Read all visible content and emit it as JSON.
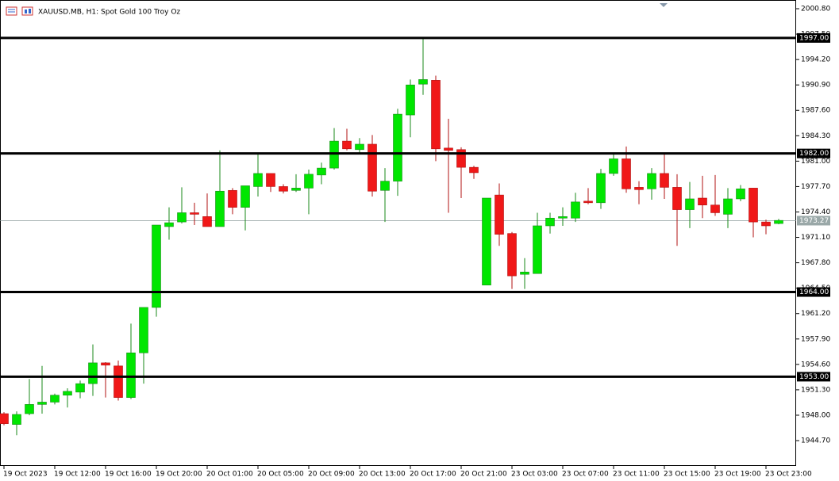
{
  "chart_data": {
    "type": "candlestick",
    "title": "XAUUSD.MB, H1:  Spot Gold 100 Troy Oz",
    "up_color": "#00e600",
    "down_color": "#f01818",
    "categories": [
      "19 Oct 2023",
      null,
      null,
      null,
      "19 Oct 12:00",
      null,
      null,
      null,
      "19 Oct 16:00",
      null,
      null,
      null,
      "19 Oct 20:00",
      null,
      null,
      null,
      "20 Oct 01:00",
      null,
      null,
      null,
      "20 Oct 05:00",
      null,
      null,
      null,
      "20 Oct 09:00",
      null,
      null,
      null,
      "20 Oct 13:00",
      null,
      null,
      null,
      "20 Oct 17:00",
      null,
      null,
      null,
      "20 Oct 21:00",
      null,
      null,
      null,
      "23 Oct 03:00",
      null,
      null,
      null,
      "23 Oct 07:00",
      null,
      null,
      null,
      "23 Oct 11:00",
      null,
      null,
      null,
      "23 Oct 15:00",
      null,
      null,
      null,
      "23 Oct 19:00",
      null,
      null,
      null,
      "23 Oct 23:00",
      null
    ],
    "open": [
      1948.2,
      1946.8,
      1948.2,
      1949.4,
      1949.7,
      1950.6,
      1951.0,
      1952.1,
      1954.8,
      1954.4,
      1950.3,
      1956.1,
      1962.0,
      1972.5,
      1973.1,
      1974.3,
      1973.8,
      1972.5,
      1977.2,
      1975.0,
      1977.7,
      1979.4,
      1977.7,
      1977.2,
      1977.5,
      1979.2,
      1980.1,
      1983.6,
      1982.5,
      1983.2,
      1977.2,
      1978.4,
      1987.0,
      1991.0,
      1991.5,
      1982.7,
      1982.5,
      1980.2,
      1964.9,
      1976.6,
      1971.6,
      1966.3,
      1966.4,
      1972.6,
      1973.6,
      1973.6,
      1975.8,
      1975.6,
      1979.4,
      1981.3,
      1977.6,
      1977.4,
      1979.4,
      1977.6,
      1974.7,
      1976.2,
      1975.3,
      1974.1,
      1976.1,
      1977.5,
      1973.1,
      1972.9
    ],
    "high": [
      1948.4,
      1948.5,
      1952.7,
      1954.4,
      1950.8,
      1951.5,
      1952.5,
      1957.2,
      1954.9,
      1955.1,
      1959.9,
      1962.0,
      1972.7,
      1975.0,
      1977.6,
      1975.6,
      1976.8,
      1982.4,
      1977.5,
      1977.8,
      1982.0,
      1979.4,
      1978.0,
      1979.3,
      1979.9,
      1980.8,
      1985.3,
      1985.2,
      1984.0,
      1984.4,
      1980.1,
      1987.8,
      1991.6,
      1996.9,
      1992.1,
      1986.5,
      1982.8,
      1980.4,
      1976.2,
      1978.1,
      1971.8,
      1968.4,
      1974.3,
      1974.3,
      1975.0,
      1976.9,
      1977.5,
      1980.0,
      1981.9,
      1982.9,
      1978.4,
      1980.1,
      1981.9,
      1979.3,
      1978.3,
      1979.1,
      1979.2,
      1977.5,
      1977.9,
      1977.5,
      1973.4,
      1973.5
    ],
    "low": [
      1946.7,
      1945.4,
      1948.0,
      1948.2,
      1949.4,
      1949.0,
      1950.2,
      1950.5,
      1950.3,
      1949.9,
      1950.1,
      1952.1,
      1960.8,
      1970.8,
      1972.9,
      1972.7,
      1972.5,
      1972.5,
      1974.1,
      1972.0,
      1976.4,
      1977.0,
      1976.8,
      1977.0,
      1974.1,
      1978.0,
      1979.9,
      1982.4,
      1982.0,
      1976.4,
      1973.1,
      1976.5,
      1984.1,
      1989.6,
      1981.0,
      1974.3,
      1976.2,
      1978.7,
      1964.9,
      1970.0,
      1964.4,
      1964.4,
      1966.4,
      1971.6,
      1972.6,
      1973.1,
      1975.4,
      1974.8,
      1979.1,
      1976.9,
      1975.4,
      1976.0,
      1976.1,
      1970.0,
      1972.3,
      1973.6,
      1973.9,
      1972.3,
      1975.8,
      1971.1,
      1971.5,
      1972.8
    ],
    "close": [
      1946.9,
      1948.1,
      1949.4,
      1949.7,
      1950.6,
      1951.1,
      1952.1,
      1954.8,
      1954.5,
      1950.3,
      1956.1,
      1962.0,
      1972.7,
      1973.0,
      1974.3,
      1974.1,
      1972.5,
      1977.1,
      1975.0,
      1977.8,
      1979.4,
      1977.7,
      1977.1,
      1977.5,
      1979.3,
      1980.1,
      1983.6,
      1982.6,
      1983.2,
      1977.1,
      1978.4,
      1987.1,
      1990.9,
      1991.6,
      1982.6,
      1982.4,
      1980.2,
      1979.5,
      1976.2,
      1971.5,
      1966.1,
      1966.6,
      1972.6,
      1973.6,
      1973.8,
      1975.7,
      1975.6,
      1979.4,
      1981.3,
      1977.4,
      1977.3,
      1979.4,
      1977.6,
      1974.7,
      1976.1,
      1975.3,
      1974.3,
      1976.1,
      1977.4,
      1973.1,
      1972.6,
      1973.3
    ],
    "ylim": [
      1941.41,
      2001.52
    ],
    "yticks": [
      {
        "value": 2000.8,
        "label": "2000.80"
      },
      {
        "value": 1997.5,
        "label": "1997.50"
      },
      {
        "value": 1994.2,
        "label": "1994.20"
      },
      {
        "value": 1990.9,
        "label": "1990.90"
      },
      {
        "value": 1987.6,
        "label": "1987.60"
      },
      {
        "value": 1984.3,
        "label": "1984.30"
      },
      {
        "value": 1981,
        "label": "1981.00"
      },
      {
        "value": 1977.7,
        "label": "1977.70"
      },
      {
        "value": 1974.4,
        "label": "1974.40"
      },
      {
        "value": 1971.1,
        "label": "1971.10"
      },
      {
        "value": 1967.8,
        "label": "1967.80"
      },
      {
        "value": 1964.5,
        "label": "1964.50"
      },
      {
        "value": 1961.2,
        "label": "1961.20"
      },
      {
        "value": 1957.9,
        "label": "1957.90"
      },
      {
        "value": 1954.6,
        "label": "1954.60"
      },
      {
        "value": 1951.3,
        "label": "1951.30"
      },
      {
        "value": 1948,
        "label": "1948.00"
      },
      {
        "value": 1944.7,
        "label": "1944.70"
      }
    ],
    "levels": [
      {
        "value": 1997,
        "label": "1997.00"
      },
      {
        "value": 1982,
        "label": "1982.00"
      },
      {
        "value": 1964,
        "label": "1964.00"
      },
      {
        "value": 1953,
        "label": "1953.00"
      }
    ],
    "current_price": {
      "value": 1973.27,
      "label": "1973.27"
    }
  }
}
